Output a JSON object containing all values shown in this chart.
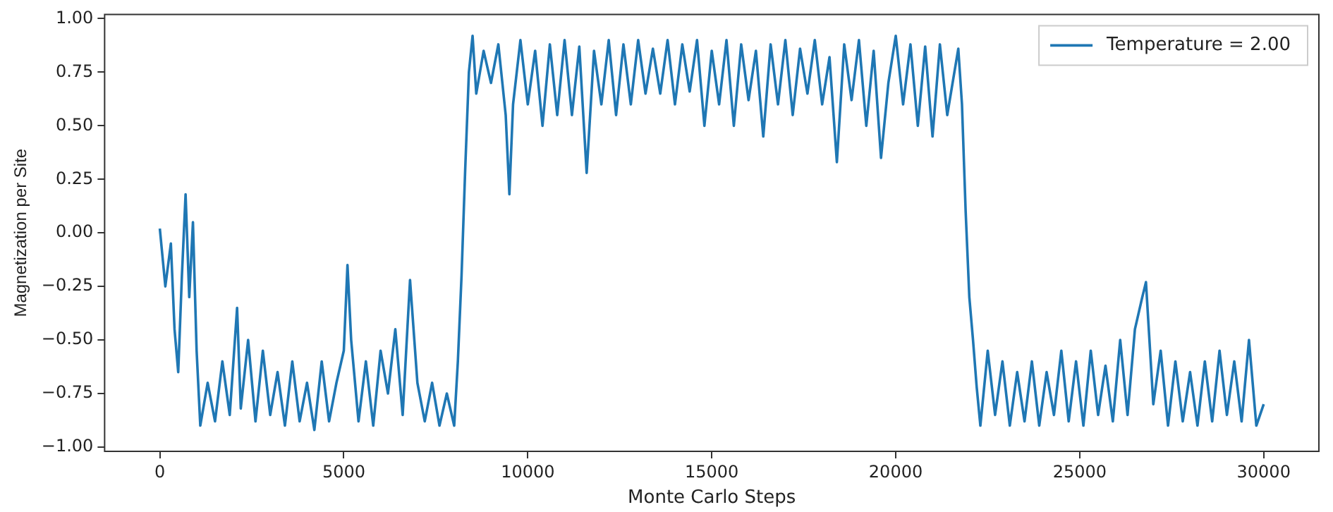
{
  "chart_data": {
    "type": "line",
    "xlabel": "Monte Carlo Steps",
    "ylabel": "Magnetization per Site",
    "legend": "top right",
    "grid": false,
    "marker": "none",
    "xlim": [
      -1500,
      31500
    ],
    "xticks": [
      0,
      5000,
      10000,
      15000,
      20000,
      25000,
      30000
    ],
    "ylim": [
      -1.02,
      1.02
    ],
    "yticks": [
      {
        "value": -1,
        "label": "−1.00"
      },
      {
        "value": -0.75,
        "label": "−0.75"
      },
      {
        "value": -0.5,
        "label": "−0.50"
      },
      {
        "value": -0.25,
        "label": "−0.25"
      },
      {
        "value": 0,
        "label": "0.00"
      },
      {
        "value": 0.25,
        "label": "0.25"
      },
      {
        "value": 0.5,
        "label": "0.50"
      },
      {
        "value": 0.75,
        "label": "0.75"
      },
      {
        "value": 1,
        "label": "1.00"
      }
    ],
    "x": [
      0,
      150,
      300,
      400,
      500,
      600,
      700,
      800,
      900,
      1000,
      1100,
      1300,
      1500,
      1700,
      1900,
      2100,
      2200,
      2400,
      2600,
      2800,
      3000,
      3200,
      3400,
      3600,
      3800,
      4000,
      4200,
      4400,
      4600,
      4800,
      5000,
      5100,
      5200,
      5400,
      5600,
      5800,
      6000,
      6200,
      6400,
      6600,
      6800,
      7000,
      7200,
      7400,
      7600,
      7800,
      8000,
      8100,
      8200,
      8300,
      8400,
      8500,
      8600,
      8800,
      9000,
      9200,
      9400,
      9500,
      9600,
      9800,
      10000,
      10200,
      10400,
      10600,
      10800,
      11000,
      11200,
      11400,
      11600,
      11800,
      12000,
      12200,
      12400,
      12600,
      12800,
      13000,
      13200,
      13400,
      13600,
      13800,
      14000,
      14200,
      14400,
      14600,
      14800,
      15000,
      15200,
      15400,
      15600,
      15800,
      16000,
      16200,
      16400,
      16600,
      16800,
      17000,
      17200,
      17400,
      17600,
      17800,
      18000,
      18200,
      18400,
      18600,
      18800,
      19000,
      19200,
      19400,
      19600,
      19800,
      20000,
      20200,
      20400,
      20600,
      20800,
      21000,
      21200,
      21400,
      21700,
      21800,
      21900,
      22000,
      22100,
      22200,
      22300,
      22500,
      22700,
      22900,
      23100,
      23300,
      23500,
      23700,
      23900,
      24100,
      24300,
      24500,
      24700,
      24900,
      25100,
      25300,
      25500,
      25700,
      25900,
      26100,
      26300,
      26500,
      26700,
      26800,
      27000,
      27200,
      27400,
      27600,
      27800,
      28000,
      28200,
      28400,
      28600,
      28800,
      29000,
      29200,
      29400,
      29600,
      29800,
      30000
    ],
    "series": [
      {
        "name": "Temperature = 2.00",
        "color": "#1f77b4",
        "values": [
          0.02,
          -0.25,
          -0.05,
          -0.45,
          -0.65,
          -0.2,
          0.18,
          -0.3,
          0.05,
          -0.55,
          -0.9,
          -0.7,
          -0.88,
          -0.6,
          -0.85,
          -0.35,
          -0.82,
          -0.5,
          -0.88,
          -0.55,
          -0.85,
          -0.65,
          -0.9,
          -0.6,
          -0.88,
          -0.7,
          -0.92,
          -0.6,
          -0.88,
          -0.7,
          -0.55,
          -0.15,
          -0.5,
          -0.88,
          -0.6,
          -0.9,
          -0.55,
          -0.75,
          -0.45,
          -0.85,
          -0.22,
          -0.7,
          -0.88,
          -0.7,
          -0.9,
          -0.75,
          -0.9,
          -0.6,
          -0.2,
          0.3,
          0.75,
          0.92,
          0.65,
          0.85,
          0.7,
          0.88,
          0.55,
          0.18,
          0.6,
          0.9,
          0.6,
          0.85,
          0.5,
          0.88,
          0.55,
          0.9,
          0.55,
          0.87,
          0.28,
          0.85,
          0.6,
          0.9,
          0.55,
          0.88,
          0.6,
          0.9,
          0.65,
          0.86,
          0.65,
          0.9,
          0.6,
          0.88,
          0.66,
          0.9,
          0.5,
          0.85,
          0.6,
          0.9,
          0.5,
          0.88,
          0.62,
          0.85,
          0.45,
          0.88,
          0.6,
          0.9,
          0.55,
          0.86,
          0.65,
          0.9,
          0.6,
          0.82,
          0.33,
          0.88,
          0.62,
          0.9,
          0.5,
          0.85,
          0.35,
          0.7,
          0.92,
          0.6,
          0.88,
          0.5,
          0.87,
          0.45,
          0.88,
          0.55,
          0.86,
          0.6,
          0.1,
          -0.3,
          -0.5,
          -0.72,
          -0.9,
          -0.55,
          -0.85,
          -0.6,
          -0.9,
          -0.65,
          -0.88,
          -0.6,
          -0.9,
          -0.65,
          -0.85,
          -0.55,
          -0.88,
          -0.6,
          -0.9,
          -0.55,
          -0.85,
          -0.62,
          -0.88,
          -0.5,
          -0.85,
          -0.45,
          -0.3,
          -0.23,
          -0.8,
          -0.55,
          -0.9,
          -0.6,
          -0.88,
          -0.65,
          -0.9,
          -0.6,
          -0.88,
          -0.55,
          -0.85,
          -0.6,
          -0.88,
          -0.5,
          -0.9,
          -0.8
        ]
      }
    ]
  }
}
